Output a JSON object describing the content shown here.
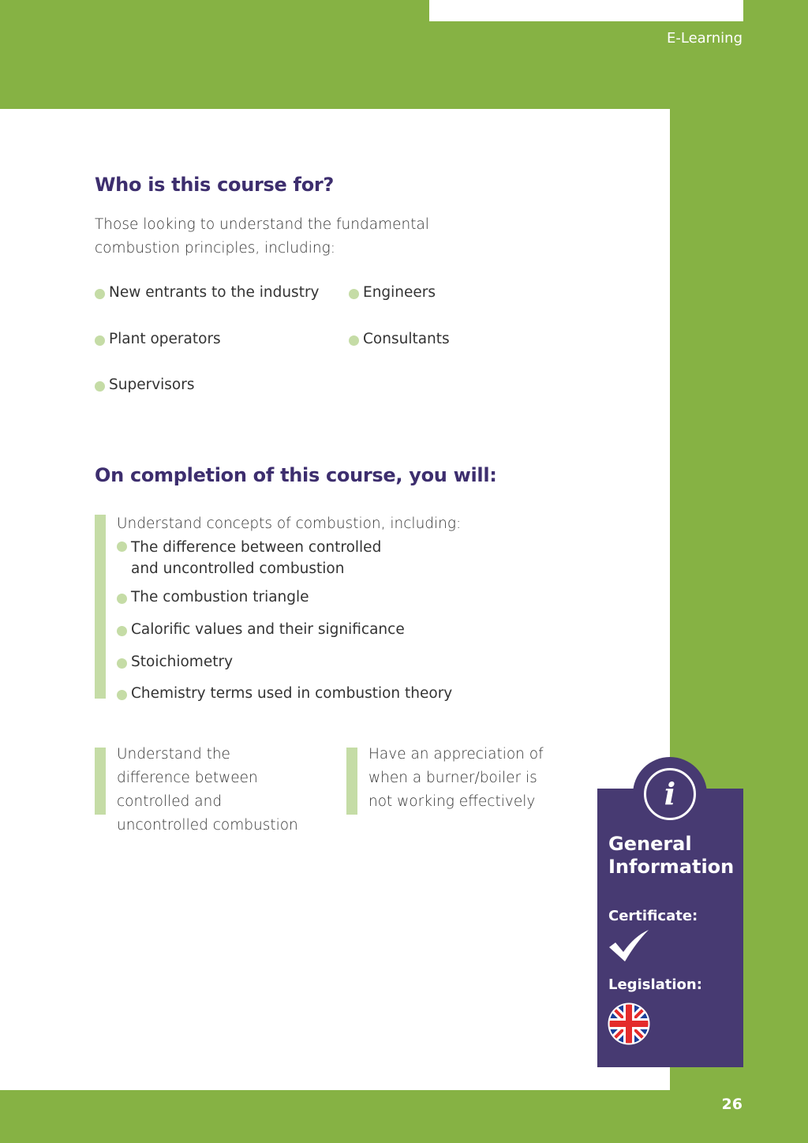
{
  "header": {
    "section": "E-Learning"
  },
  "who": {
    "heading": "Who is this course for?",
    "intro": "Those looking to understand the fundamental combustion principles, including:",
    "audience": [
      "New entrants to the industry",
      "Engineers",
      "Plant operators",
      "Consultants",
      "Supervisors"
    ]
  },
  "completion": {
    "heading": "On completion of this course, you will:",
    "concepts_intro": "Understand concepts of combustion, including:",
    "concepts": [
      "The difference between controlled and uncontrolled combustion",
      "The combustion triangle",
      "Calorific values and their significance",
      "Stoichiometry",
      "Chemistry terms used in combustion theory"
    ],
    "outcome1": "Understand the difference between controlled and uncontrolled combustion",
    "outcome2": "Have an appreciation of when a burner/boiler is not working effectively"
  },
  "info": {
    "icon": "info-icon",
    "title": "General Information",
    "certificate_label": "Certificate:",
    "certificate_icon": "checkmark-icon",
    "legislation_label": "Legislation:",
    "legislation_icon": "uk-flag-icon"
  },
  "footer": {
    "page_number": "26"
  },
  "colors": {
    "green": "#86b244",
    "purple": "#473a72",
    "heading": "#3d2e6e",
    "bullet": "#c5dca6"
  }
}
